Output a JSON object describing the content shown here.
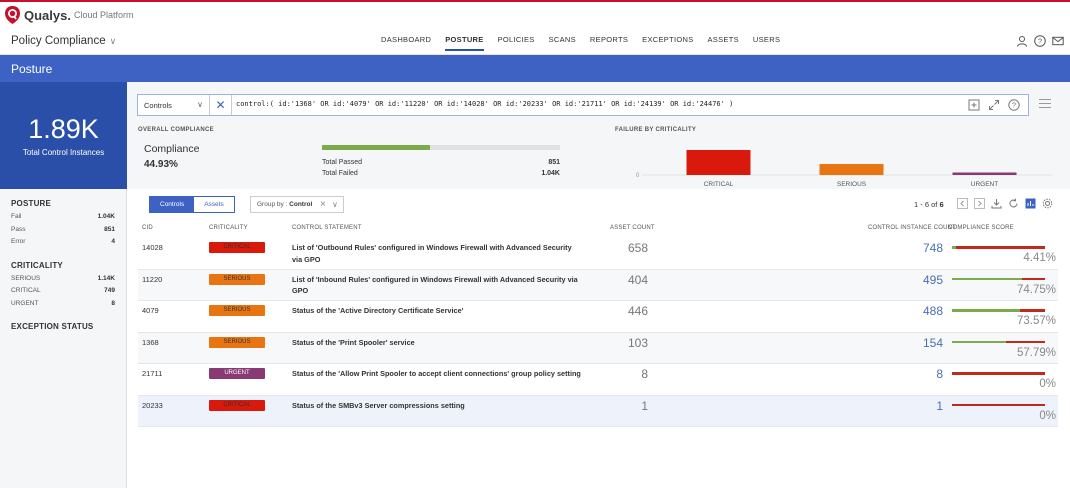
{
  "brand": {
    "name": "Qualys.",
    "sub": "Cloud Platform"
  },
  "app": {
    "name": "Policy Compliance"
  },
  "nav": [
    "DASHBOARD",
    "POSTURE",
    "POLICIES",
    "SCANS",
    "REPORTS",
    "EXCEPTIONS",
    "ASSETS",
    "USERS"
  ],
  "nav_active": "POSTURE",
  "page_title": "Posture",
  "total": {
    "value": "1.89K",
    "label": "Total Control Instances"
  },
  "left": {
    "posture_title": "POSTURE",
    "posture": [
      {
        "k": "Fail",
        "v": "1.04K"
      },
      {
        "k": "Pass",
        "v": "851"
      },
      {
        "k": "Error",
        "v": "4"
      }
    ],
    "criticality_title": "CRITICALITY",
    "criticality": [
      {
        "k": "SERIOUS",
        "v": "1.14K"
      },
      {
        "k": "CRITICAL",
        "v": "749"
      },
      {
        "k": "URGENT",
        "v": "8"
      }
    ],
    "exception_title": "EXCEPTION STATUS"
  },
  "filter": {
    "select": "Controls",
    "query": "control:( id:'1368' OR id:'4079' OR id:'11220' OR id:'14028' OR id:'20233' OR id:'21711' OR id:'24139' OR id:'24476' )"
  },
  "overall": {
    "title": "OVERALL COMPLIANCE",
    "label": "Compliance",
    "value": "44.93%",
    "fill_fraction": 0.4493,
    "passed_label": "Total Passed",
    "passed": "851",
    "failed_label": "Total Failed",
    "failed": "1.04K"
  },
  "failure": {
    "title": "FAILURE BY CRITICALITY",
    "axis_zero": "0",
    "bars": [
      {
        "label": "CRITICAL",
        "value": 749,
        "color": "#d9190b"
      },
      {
        "label": "SERIOUS",
        "value": 330,
        "color": "#e87511"
      },
      {
        "label": "URGENT",
        "value": 8,
        "color": "#8a3a72"
      }
    ]
  },
  "toolbar": {
    "tab_controls": "Controls",
    "tab_assets": "Assets",
    "groupby_label": "Group by :",
    "groupby_value": "Control"
  },
  "pager": {
    "text": "1 - 6 of",
    "total": "6"
  },
  "columns": {
    "cid": "CID",
    "crit": "CRITICALITY",
    "stmt": "CONTROL STATEMENT",
    "ac": "ASSET COUNT",
    "cic": "CONTROL INSTANCE COUNT",
    "score": "COMPLIANCE SCORE"
  },
  "crit_colors": {
    "CRITICAL": "#d9190b",
    "SERIOUS": "#e87511",
    "URGENT": "#8a3a72"
  },
  "rows": [
    {
      "cid": "14028",
      "crit": "CRITICAL",
      "stmt": "List of 'Outbound Rules' configured in Windows Firewall with Advanced Security via GPO",
      "ac": "658",
      "cic": "748",
      "score": "4.41%",
      "frac": 0.0441
    },
    {
      "cid": "11220",
      "crit": "SERIOUS",
      "stmt": "List of 'Inbound Rules' configured in Windows Firewall with Advanced Security via GPO",
      "ac": "404",
      "cic": "495",
      "score": "74.75%",
      "frac": 0.7475
    },
    {
      "cid": "4079",
      "crit": "SERIOUS",
      "stmt": "Status of the 'Active Directory Certificate Service'",
      "ac": "446",
      "cic": "488",
      "score": "73.57%",
      "frac": 0.7357
    },
    {
      "cid": "1368",
      "crit": "SERIOUS",
      "stmt": "Status of the 'Print Spooler' service",
      "ac": "103",
      "cic": "154",
      "score": "57.79%",
      "frac": 0.5779
    },
    {
      "cid": "21711",
      "crit": "URGENT",
      "stmt": "Status of the 'Allow Print Spooler to accept client connections' group policy setting",
      "ac": "8",
      "cic": "8",
      "score": "0%",
      "frac": 0
    },
    {
      "cid": "20233",
      "crit": "CRITICAL",
      "stmt": "Status of the SMBv3 Server compressions setting",
      "ac": "1",
      "cic": "1",
      "score": "0%",
      "frac": 0
    }
  ]
}
